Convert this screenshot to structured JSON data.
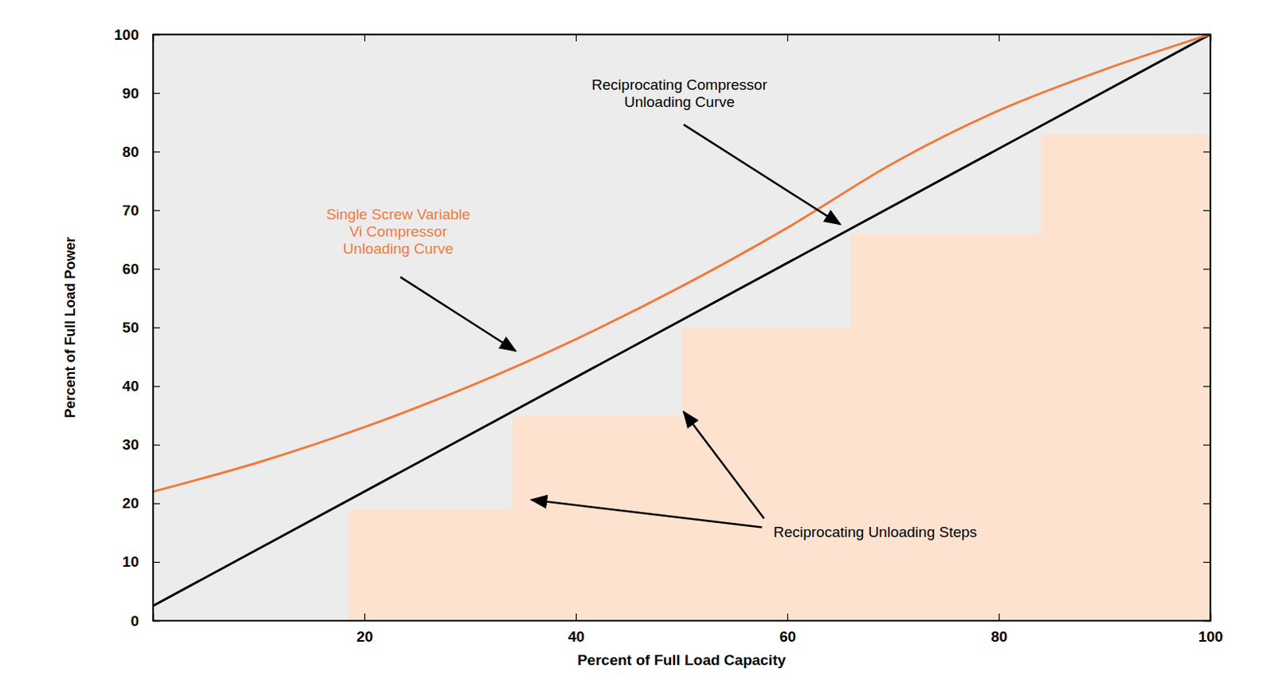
{
  "chart_data": {
    "type": "line",
    "x_label": "Percent of Full Load Capacity",
    "y_label": "Percent of Full Load Power",
    "xlim": [
      0,
      100
    ],
    "ylim": [
      0,
      100
    ],
    "xticks": [
      20,
      40,
      60,
      80,
      100
    ],
    "yticks": [
      0,
      10,
      20,
      30,
      40,
      50,
      60,
      70,
      80,
      90,
      100
    ],
    "grid": false,
    "series": [
      {
        "name": "Reciprocating Unloading Steps",
        "type": "area",
        "line_style": "step",
        "color": "#fde2cf",
        "x": [
          18.5,
          34,
          50,
          66,
          84,
          100
        ],
        "values": [
          19,
          35,
          50,
          66,
          83,
          83
        ]
      },
      {
        "name": "Reciprocating Compressor\nUnloading Curve",
        "type": "line",
        "color": "#000000",
        "x": [
          0,
          100
        ],
        "values": [
          2.5,
          100
        ]
      },
      {
        "name": "Single Screw Variable\nVi Compressor\nUnloading Curve",
        "type": "line",
        "color": "#f07a3c",
        "x": [
          0,
          10,
          20,
          30,
          40,
          50,
          60,
          70,
          80,
          90,
          100
        ],
        "values": [
          22,
          27,
          33,
          40,
          48,
          57,
          67,
          78,
          87,
          94,
          100
        ]
      }
    ]
  }
}
